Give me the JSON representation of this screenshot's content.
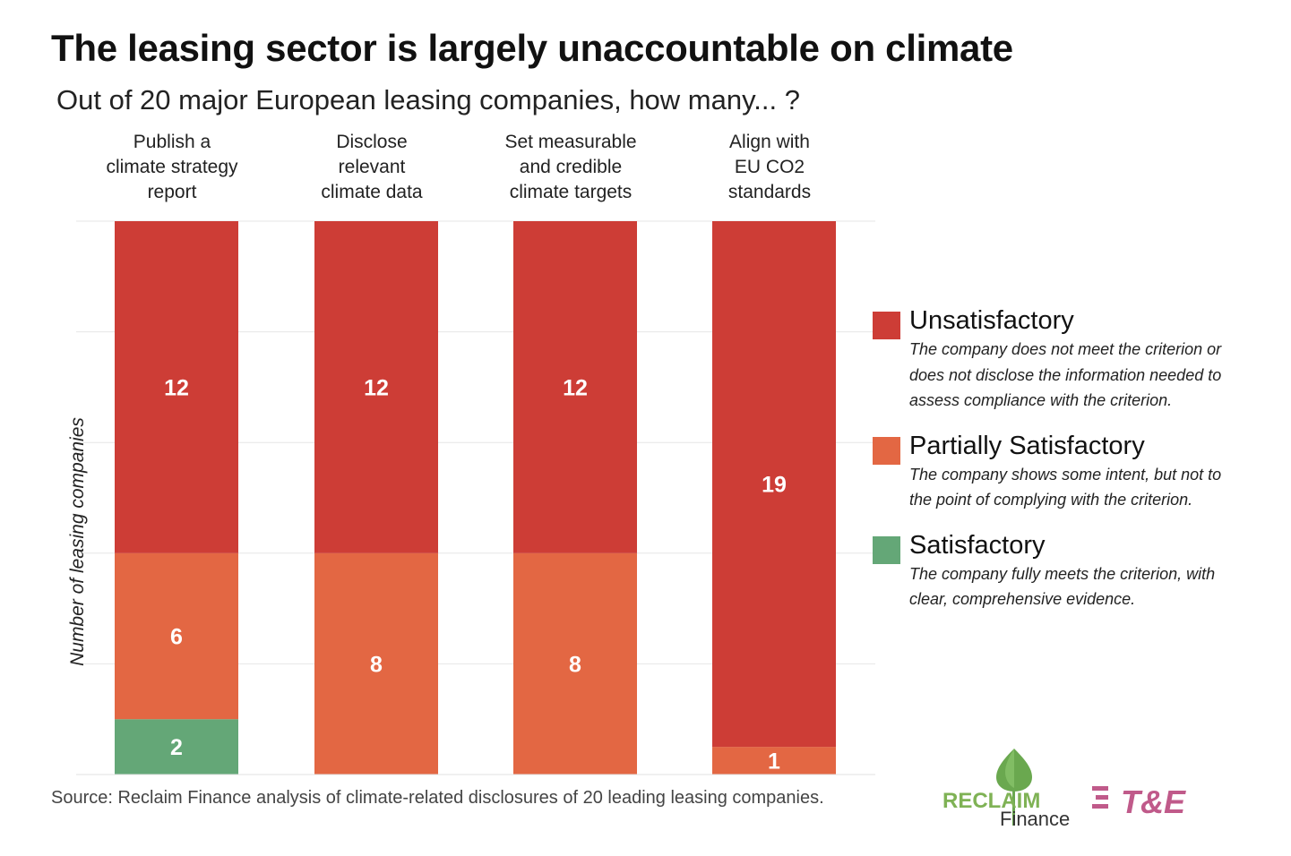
{
  "header": {
    "title": "The leasing sector is largely unaccountable on climate",
    "subtitle": "Out of 20 major European leasing companies, how many... ?"
  },
  "chart_data": {
    "type": "bar",
    "stacked": true,
    "categories": [
      "Publish a climate strategy report",
      "Disclose relevant climate data",
      "Set measurable and credible climate targets",
      "Align with EU CO2 standards"
    ],
    "category_lines": [
      [
        "Publish a",
        "climate strategy",
        "report"
      ],
      [
        "Disclose",
        "relevant",
        "climate data"
      ],
      [
        "Set measurable",
        "and credible",
        "climate targets"
      ],
      [
        "Align with",
        "EU CO2",
        "standards"
      ]
    ],
    "series": [
      {
        "name": "Satisfactory",
        "color": "#64a777",
        "values": [
          2,
          0,
          0,
          0
        ]
      },
      {
        "name": "Partially Satisfactory",
        "color": "#e36743",
        "values": [
          6,
          8,
          8,
          1
        ]
      },
      {
        "name": "Unsatisfactory",
        "color": "#cd3d36",
        "values": [
          12,
          12,
          12,
          19
        ]
      }
    ],
    "ylabel": "Number of leasing companies",
    "ylim": [
      0,
      20
    ],
    "grid": true,
    "legend_position": "right"
  },
  "legend": [
    {
      "name": "Unsatisfactory",
      "color": "#cd3d36",
      "description": "The company does not meet the criterion or does not disclose the information needed to assess compliance with the criterion."
    },
    {
      "name": "Partially Satisfactory",
      "color": "#e36743",
      "description": "The company shows some intent, but not to the point of complying with the criterion."
    },
    {
      "name": "Satisfactory",
      "color": "#64a777",
      "description": "The company fully meets the criterion, with clear, comprehensive evidence."
    }
  ],
  "footer": {
    "source": "Source: Reclaim Finance analysis of climate-related disclosures of 20 leading leasing companies."
  },
  "logos": {
    "reclaim_top": "RECLAIM",
    "reclaim_bottom": "Finance",
    "te": "T&E"
  }
}
